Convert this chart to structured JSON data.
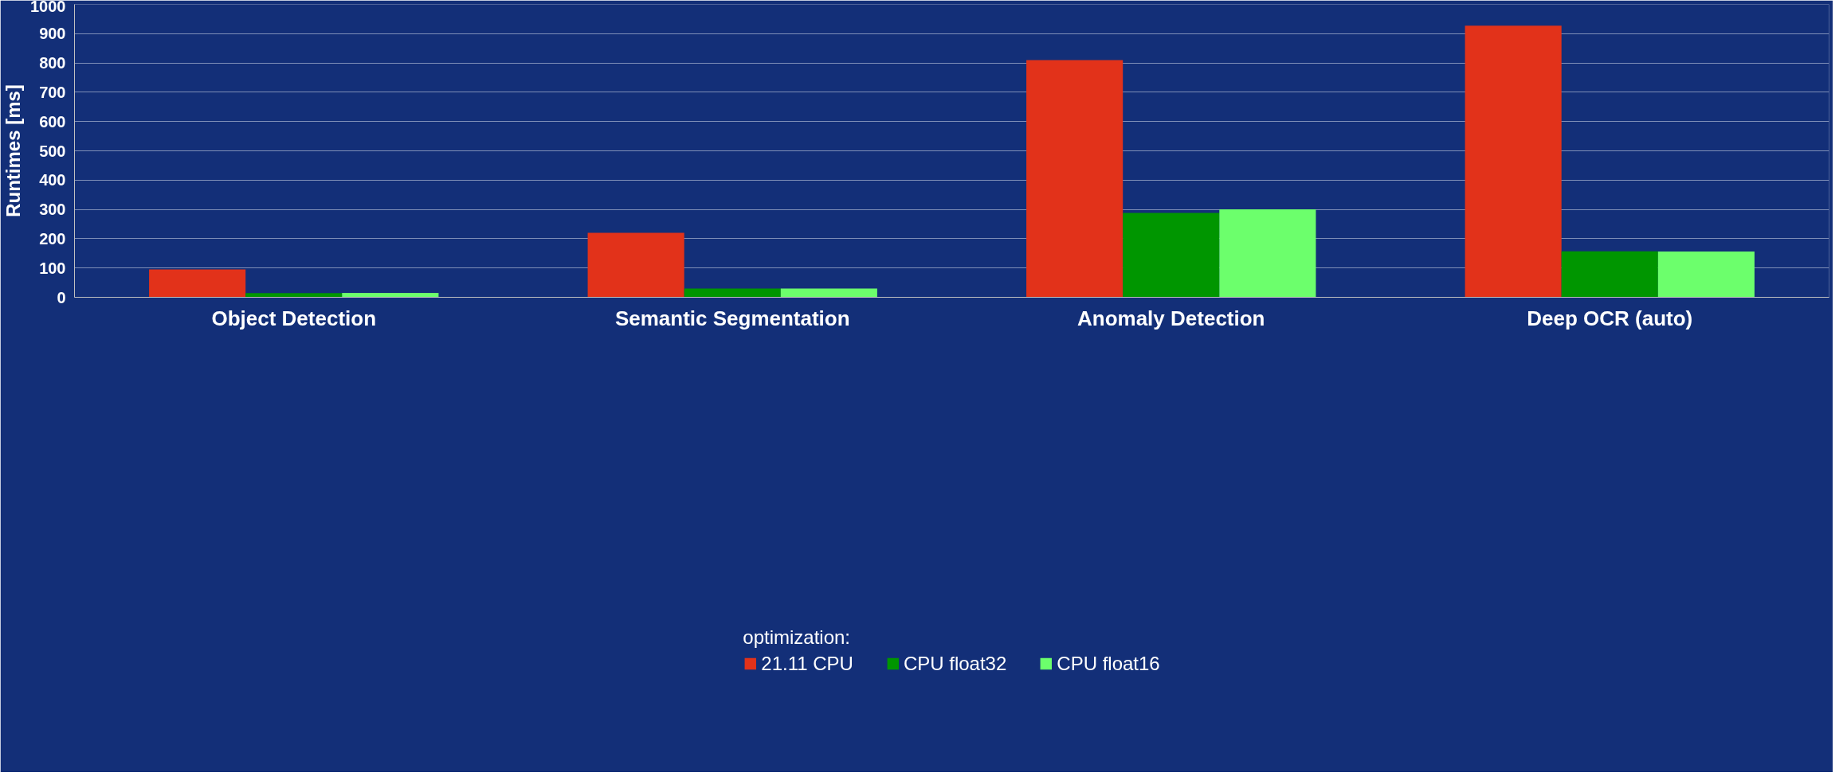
{
  "chart_data": {
    "type": "bar",
    "ylabel": "Runtimes [ms]",
    "legend_title": "optimization:",
    "categories": [
      "Object Detection",
      "Semantic Segmentation",
      "Anomaly Detection",
      "Deep OCR (auto)"
    ],
    "series": [
      {
        "name": "21.11 CPU",
        "color": "#e2321a",
        "values": [
          95,
          220,
          810,
          927
        ]
      },
      {
        "name": "CPU float32",
        "color": "#009600",
        "values": [
          14,
          30,
          288,
          157
        ]
      },
      {
        "name": "CPU float16",
        "color": "#6cff6c",
        "values": [
          15,
          30,
          300,
          156
        ]
      }
    ],
    "ylim": [
      0,
      1000
    ],
    "yticks": [
      0,
      100,
      200,
      300,
      400,
      500,
      600,
      700,
      800,
      900,
      1000
    ],
    "grid": "y",
    "legend": "bottom"
  }
}
